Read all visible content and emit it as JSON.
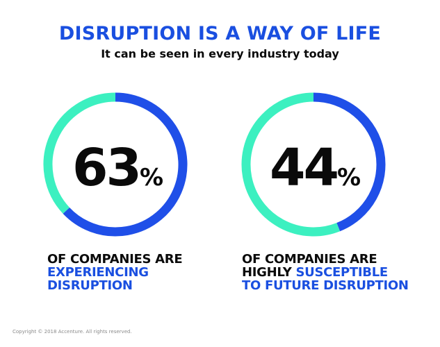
{
  "colors": {
    "heading_blue": "#1a4fe0",
    "ring_blue": "#1f4fe8",
    "ring_teal": "#3cf0c0",
    "text_dark": "#0a0a0a",
    "footer_gray": "#8a8a8a"
  },
  "header": {
    "title": "DISRUPTION IS A WAY OF LIFE",
    "subtitle": "It can be seen in every industry today"
  },
  "chart_data": [
    {
      "type": "pie",
      "values": [
        63,
        37
      ],
      "value_label": "63",
      "unit": "%",
      "caption_lines": [
        {
          "text": "OF COMPANIES ARE",
          "accent": false
        },
        {
          "text": "EXPERIENCING",
          "accent": true
        },
        {
          "text": "DISRUPTION",
          "accent": true
        }
      ]
    },
    {
      "type": "pie",
      "values": [
        44,
        56
      ],
      "value_label": "44",
      "unit": "%",
      "caption_lines": [
        {
          "text": "OF COMPANIES ARE",
          "accent": false
        },
        {
          "text": "HIGHLY ",
          "accent": false,
          "inline_accent": "SUSCEPTIBLE"
        },
        {
          "text": "TO FUTURE DISRUPTION",
          "accent": true
        }
      ]
    }
  ],
  "footer": {
    "copyright": "Copyright © 2018 Accenture. All rights reserved."
  }
}
